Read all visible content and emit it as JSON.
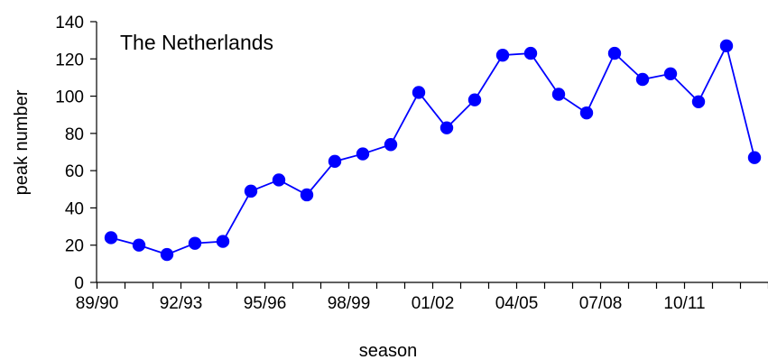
{
  "chart_data": {
    "type": "line",
    "title": "The Netherlands",
    "xlabel": "season",
    "ylabel": "peak number",
    "ylim": [
      0,
      140
    ],
    "yticks": [
      "0",
      "20",
      "40",
      "60",
      "80",
      "100",
      "120",
      "140"
    ],
    "xtick_labels": [
      "89/90",
      "92/93",
      "95/96",
      "98/99",
      "01/02",
      "04/05",
      "07/08",
      "10/11"
    ],
    "grid": false,
    "colors": {
      "series": "#0000ff",
      "axis": "#000000"
    },
    "series": [
      {
        "x": [
          "89/90",
          "90/91",
          "91/92",
          "92/93",
          "93/94",
          "94/95",
          "95/96",
          "96/97",
          "97/98",
          "98/99",
          "99/00",
          "00/01",
          "01/02",
          "02/03",
          "03/04",
          "04/05",
          "05/06",
          "06/07",
          "07/08",
          "08/09",
          "09/10",
          "10/11",
          "11/12",
          "12/13"
        ],
        "values": [
          24,
          20,
          15,
          21,
          22,
          49,
          55,
          47,
          65,
          69,
          74,
          102,
          83,
          98,
          122,
          123,
          101,
          91,
          123,
          109,
          112,
          97,
          127,
          67
        ]
      }
    ]
  }
}
